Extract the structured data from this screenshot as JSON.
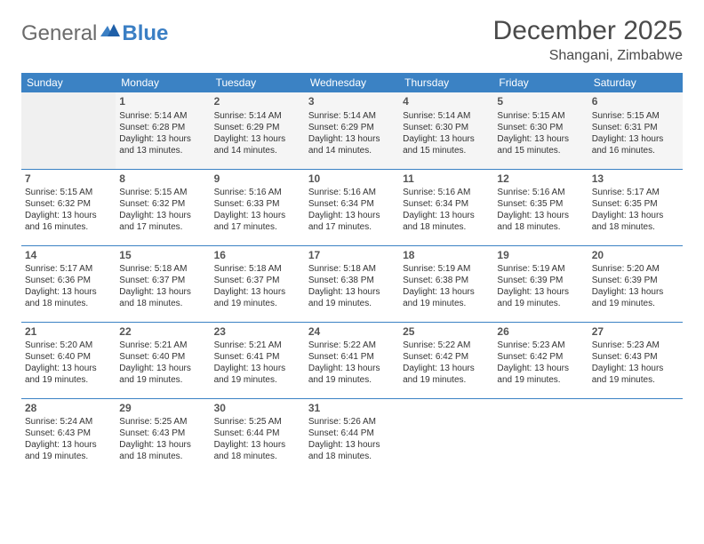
{
  "logo": {
    "text1": "General",
    "text2": "Blue"
  },
  "title": "December 2025",
  "location": "Shangani, Zimbabwe",
  "colors": {
    "header_bg": "#3b82c4",
    "header_fg": "#ffffff",
    "rule": "#3b82c4",
    "logo_gray": "#6b6b6b",
    "logo_blue": "#3b7fc4"
  },
  "weekdays": [
    "Sunday",
    "Monday",
    "Tuesday",
    "Wednesday",
    "Thursday",
    "Friday",
    "Saturday"
  ],
  "weeks": [
    [
      null,
      {
        "n": "1",
        "sr": "Sunrise: 5:14 AM",
        "ss": "Sunset: 6:28 PM",
        "d1": "Daylight: 13 hours",
        "d2": "and 13 minutes."
      },
      {
        "n": "2",
        "sr": "Sunrise: 5:14 AM",
        "ss": "Sunset: 6:29 PM",
        "d1": "Daylight: 13 hours",
        "d2": "and 14 minutes."
      },
      {
        "n": "3",
        "sr": "Sunrise: 5:14 AM",
        "ss": "Sunset: 6:29 PM",
        "d1": "Daylight: 13 hours",
        "d2": "and 14 minutes."
      },
      {
        "n": "4",
        "sr": "Sunrise: 5:14 AM",
        "ss": "Sunset: 6:30 PM",
        "d1": "Daylight: 13 hours",
        "d2": "and 15 minutes."
      },
      {
        "n": "5",
        "sr": "Sunrise: 5:15 AM",
        "ss": "Sunset: 6:30 PM",
        "d1": "Daylight: 13 hours",
        "d2": "and 15 minutes."
      },
      {
        "n": "6",
        "sr": "Sunrise: 5:15 AM",
        "ss": "Sunset: 6:31 PM",
        "d1": "Daylight: 13 hours",
        "d2": "and 16 minutes."
      }
    ],
    [
      {
        "n": "7",
        "sr": "Sunrise: 5:15 AM",
        "ss": "Sunset: 6:32 PM",
        "d1": "Daylight: 13 hours",
        "d2": "and 16 minutes."
      },
      {
        "n": "8",
        "sr": "Sunrise: 5:15 AM",
        "ss": "Sunset: 6:32 PM",
        "d1": "Daylight: 13 hours",
        "d2": "and 17 minutes."
      },
      {
        "n": "9",
        "sr": "Sunrise: 5:16 AM",
        "ss": "Sunset: 6:33 PM",
        "d1": "Daylight: 13 hours",
        "d2": "and 17 minutes."
      },
      {
        "n": "10",
        "sr": "Sunrise: 5:16 AM",
        "ss": "Sunset: 6:34 PM",
        "d1": "Daylight: 13 hours",
        "d2": "and 17 minutes."
      },
      {
        "n": "11",
        "sr": "Sunrise: 5:16 AM",
        "ss": "Sunset: 6:34 PM",
        "d1": "Daylight: 13 hours",
        "d2": "and 18 minutes."
      },
      {
        "n": "12",
        "sr": "Sunrise: 5:16 AM",
        "ss": "Sunset: 6:35 PM",
        "d1": "Daylight: 13 hours",
        "d2": "and 18 minutes."
      },
      {
        "n": "13",
        "sr": "Sunrise: 5:17 AM",
        "ss": "Sunset: 6:35 PM",
        "d1": "Daylight: 13 hours",
        "d2": "and 18 minutes."
      }
    ],
    [
      {
        "n": "14",
        "sr": "Sunrise: 5:17 AM",
        "ss": "Sunset: 6:36 PM",
        "d1": "Daylight: 13 hours",
        "d2": "and 18 minutes."
      },
      {
        "n": "15",
        "sr": "Sunrise: 5:18 AM",
        "ss": "Sunset: 6:37 PM",
        "d1": "Daylight: 13 hours",
        "d2": "and 18 minutes."
      },
      {
        "n": "16",
        "sr": "Sunrise: 5:18 AM",
        "ss": "Sunset: 6:37 PM",
        "d1": "Daylight: 13 hours",
        "d2": "and 19 minutes."
      },
      {
        "n": "17",
        "sr": "Sunrise: 5:18 AM",
        "ss": "Sunset: 6:38 PM",
        "d1": "Daylight: 13 hours",
        "d2": "and 19 minutes."
      },
      {
        "n": "18",
        "sr": "Sunrise: 5:19 AM",
        "ss": "Sunset: 6:38 PM",
        "d1": "Daylight: 13 hours",
        "d2": "and 19 minutes."
      },
      {
        "n": "19",
        "sr": "Sunrise: 5:19 AM",
        "ss": "Sunset: 6:39 PM",
        "d1": "Daylight: 13 hours",
        "d2": "and 19 minutes."
      },
      {
        "n": "20",
        "sr": "Sunrise: 5:20 AM",
        "ss": "Sunset: 6:39 PM",
        "d1": "Daylight: 13 hours",
        "d2": "and 19 minutes."
      }
    ],
    [
      {
        "n": "21",
        "sr": "Sunrise: 5:20 AM",
        "ss": "Sunset: 6:40 PM",
        "d1": "Daylight: 13 hours",
        "d2": "and 19 minutes."
      },
      {
        "n": "22",
        "sr": "Sunrise: 5:21 AM",
        "ss": "Sunset: 6:40 PM",
        "d1": "Daylight: 13 hours",
        "d2": "and 19 minutes."
      },
      {
        "n": "23",
        "sr": "Sunrise: 5:21 AM",
        "ss": "Sunset: 6:41 PM",
        "d1": "Daylight: 13 hours",
        "d2": "and 19 minutes."
      },
      {
        "n": "24",
        "sr": "Sunrise: 5:22 AM",
        "ss": "Sunset: 6:41 PM",
        "d1": "Daylight: 13 hours",
        "d2": "and 19 minutes."
      },
      {
        "n": "25",
        "sr": "Sunrise: 5:22 AM",
        "ss": "Sunset: 6:42 PM",
        "d1": "Daylight: 13 hours",
        "d2": "and 19 minutes."
      },
      {
        "n": "26",
        "sr": "Sunrise: 5:23 AM",
        "ss": "Sunset: 6:42 PM",
        "d1": "Daylight: 13 hours",
        "d2": "and 19 minutes."
      },
      {
        "n": "27",
        "sr": "Sunrise: 5:23 AM",
        "ss": "Sunset: 6:43 PM",
        "d1": "Daylight: 13 hours",
        "d2": "and 19 minutes."
      }
    ],
    [
      {
        "n": "28",
        "sr": "Sunrise: 5:24 AM",
        "ss": "Sunset: 6:43 PM",
        "d1": "Daylight: 13 hours",
        "d2": "and 19 minutes."
      },
      {
        "n": "29",
        "sr": "Sunrise: 5:25 AM",
        "ss": "Sunset: 6:43 PM",
        "d1": "Daylight: 13 hours",
        "d2": "and 18 minutes."
      },
      {
        "n": "30",
        "sr": "Sunrise: 5:25 AM",
        "ss": "Sunset: 6:44 PM",
        "d1": "Daylight: 13 hours",
        "d2": "and 18 minutes."
      },
      {
        "n": "31",
        "sr": "Sunrise: 5:26 AM",
        "ss": "Sunset: 6:44 PM",
        "d1": "Daylight: 13 hours",
        "d2": "and 18 minutes."
      },
      null,
      null,
      null
    ]
  ]
}
